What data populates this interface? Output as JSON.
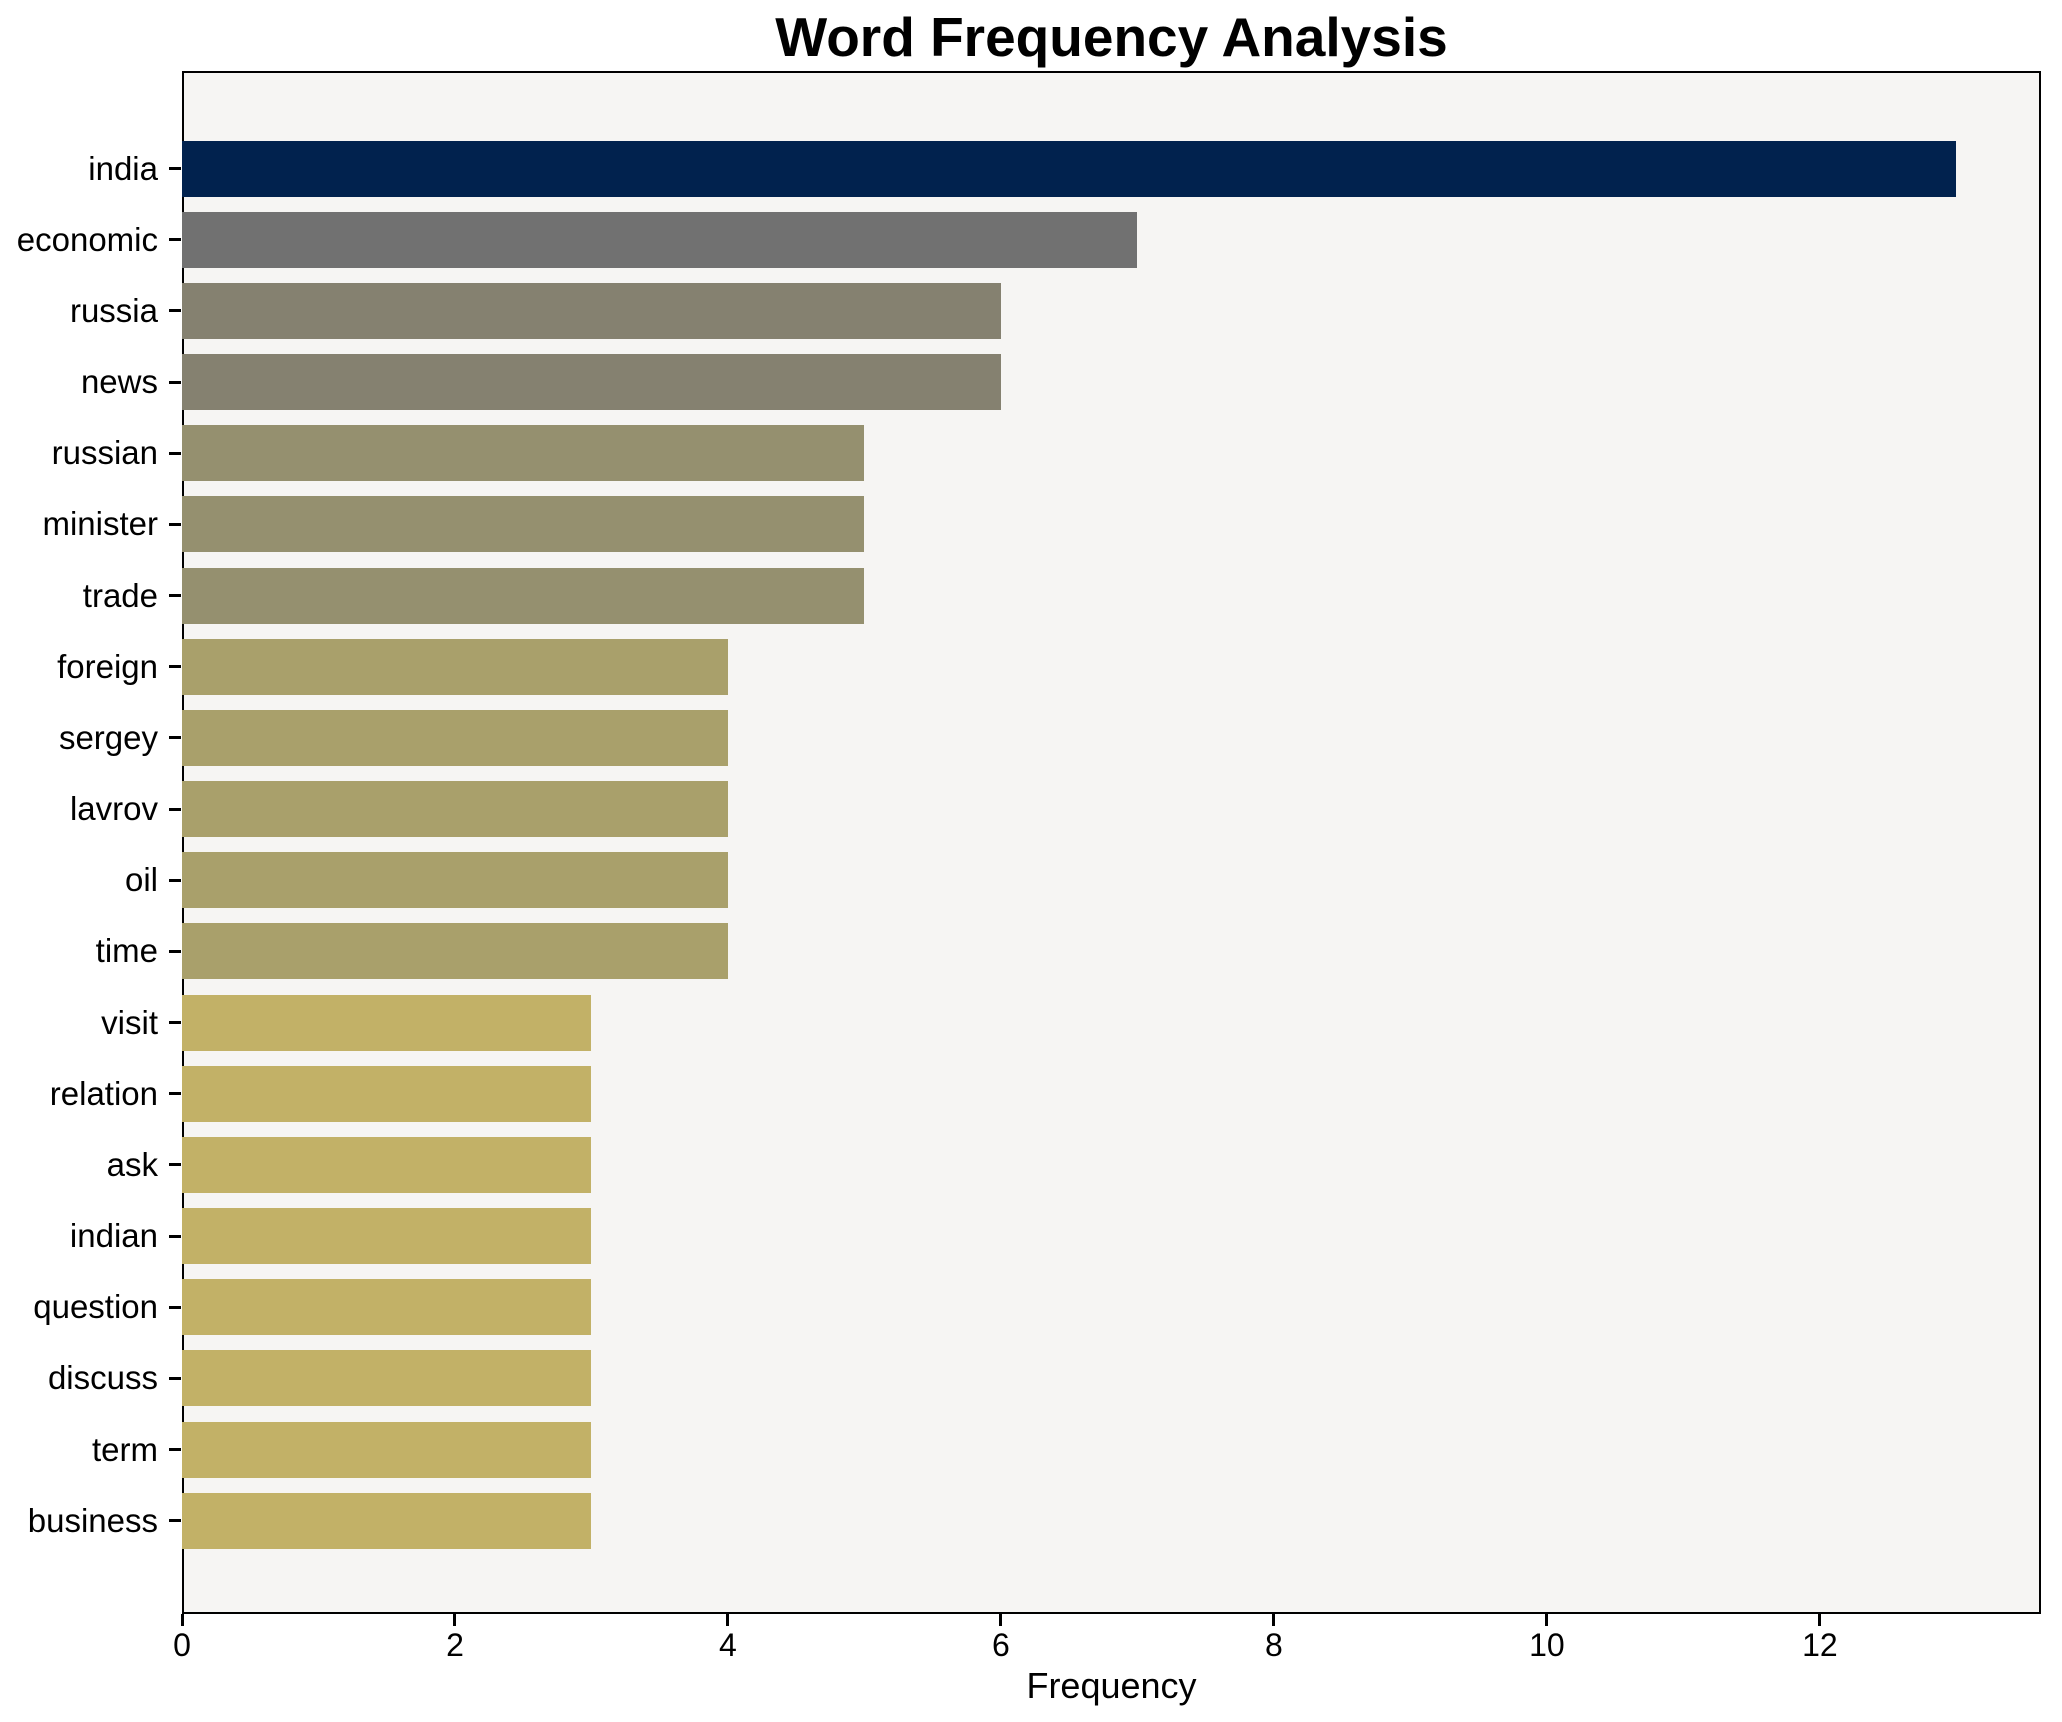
{
  "chart_data": {
    "type": "bar",
    "orientation": "horizontal",
    "title": "Word Frequency Analysis",
    "xlabel": "Frequency",
    "ylabel": "",
    "categories": [
      "india",
      "economic",
      "russia",
      "news",
      "russian",
      "minister",
      "trade",
      "foreign",
      "sergey",
      "lavrov",
      "oil",
      "time",
      "visit",
      "relation",
      "ask",
      "indian",
      "question",
      "discuss",
      "term",
      "business"
    ],
    "values": [
      13,
      7,
      6,
      6,
      5,
      5,
      5,
      4,
      4,
      4,
      4,
      4,
      3,
      3,
      3,
      3,
      3,
      3,
      3,
      3
    ],
    "bar_colors": [
      "#01224E",
      "#717171",
      "#858170",
      "#858170",
      "#95906F",
      "#95906F",
      "#95906F",
      "#A9A06B",
      "#A9A06B",
      "#A9A06B",
      "#A9A06B",
      "#A9A06B",
      "#C2B167",
      "#C2B167",
      "#C2B167",
      "#C2B167",
      "#C2B167",
      "#C2B167",
      "#C2B167",
      "#C2B167"
    ],
    "xticks": [
      0,
      2,
      4,
      6,
      8,
      10,
      12
    ],
    "xlim": [
      0,
      13.62
    ],
    "grid": false,
    "legend": null,
    "colors": {
      "figure_background": "#FFFFFF",
      "plot_background": "#F6F5F3",
      "axis": "#000000",
      "text": "#000000"
    }
  }
}
